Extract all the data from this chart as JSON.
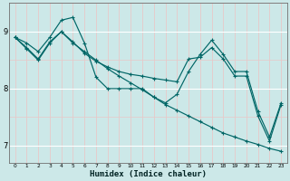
{
  "xlabel": "Humidex (Indice chaleur)",
  "bg_color": "#cce8e8",
  "line_color": "#006666",
  "grid_major_color": "#ffffff",
  "grid_minor_color": "#e8c8c8",
  "xlim": [
    -0.5,
    23.5
  ],
  "ylim": [
    6.7,
    9.5
  ],
  "yticks": [
    7,
    8,
    9
  ],
  "xticks": [
    0,
    1,
    2,
    3,
    4,
    5,
    6,
    7,
    8,
    9,
    10,
    11,
    12,
    13,
    14,
    15,
    16,
    17,
    18,
    19,
    20,
    21,
    22,
    23
  ],
  "series": [
    [
      8.9,
      8.8,
      8.65,
      8.9,
      9.2,
      9.25,
      8.8,
      8.2,
      8.0,
      8.0,
      8.0,
      8.0,
      7.85,
      7.75,
      7.9,
      8.3,
      8.6,
      8.85,
      8.6,
      8.3,
      8.3,
      7.6,
      7.15,
      7.75
    ],
    [
      8.9,
      8.7,
      8.5,
      8.8,
      9.0,
      8.8,
      8.65,
      8.5,
      8.35,
      8.22,
      8.1,
      7.98,
      7.85,
      7.72,
      7.62,
      7.52,
      7.42,
      7.32,
      7.22,
      7.15,
      7.08,
      7.02,
      6.95,
      6.9
    ],
    [
      8.9,
      8.72,
      8.52,
      8.82,
      9.0,
      8.82,
      8.62,
      8.48,
      8.38,
      8.3,
      8.25,
      8.22,
      8.18,
      8.15,
      8.12,
      8.52,
      8.55,
      8.72,
      8.52,
      8.22,
      8.22,
      7.52,
      7.08,
      7.72
    ]
  ]
}
